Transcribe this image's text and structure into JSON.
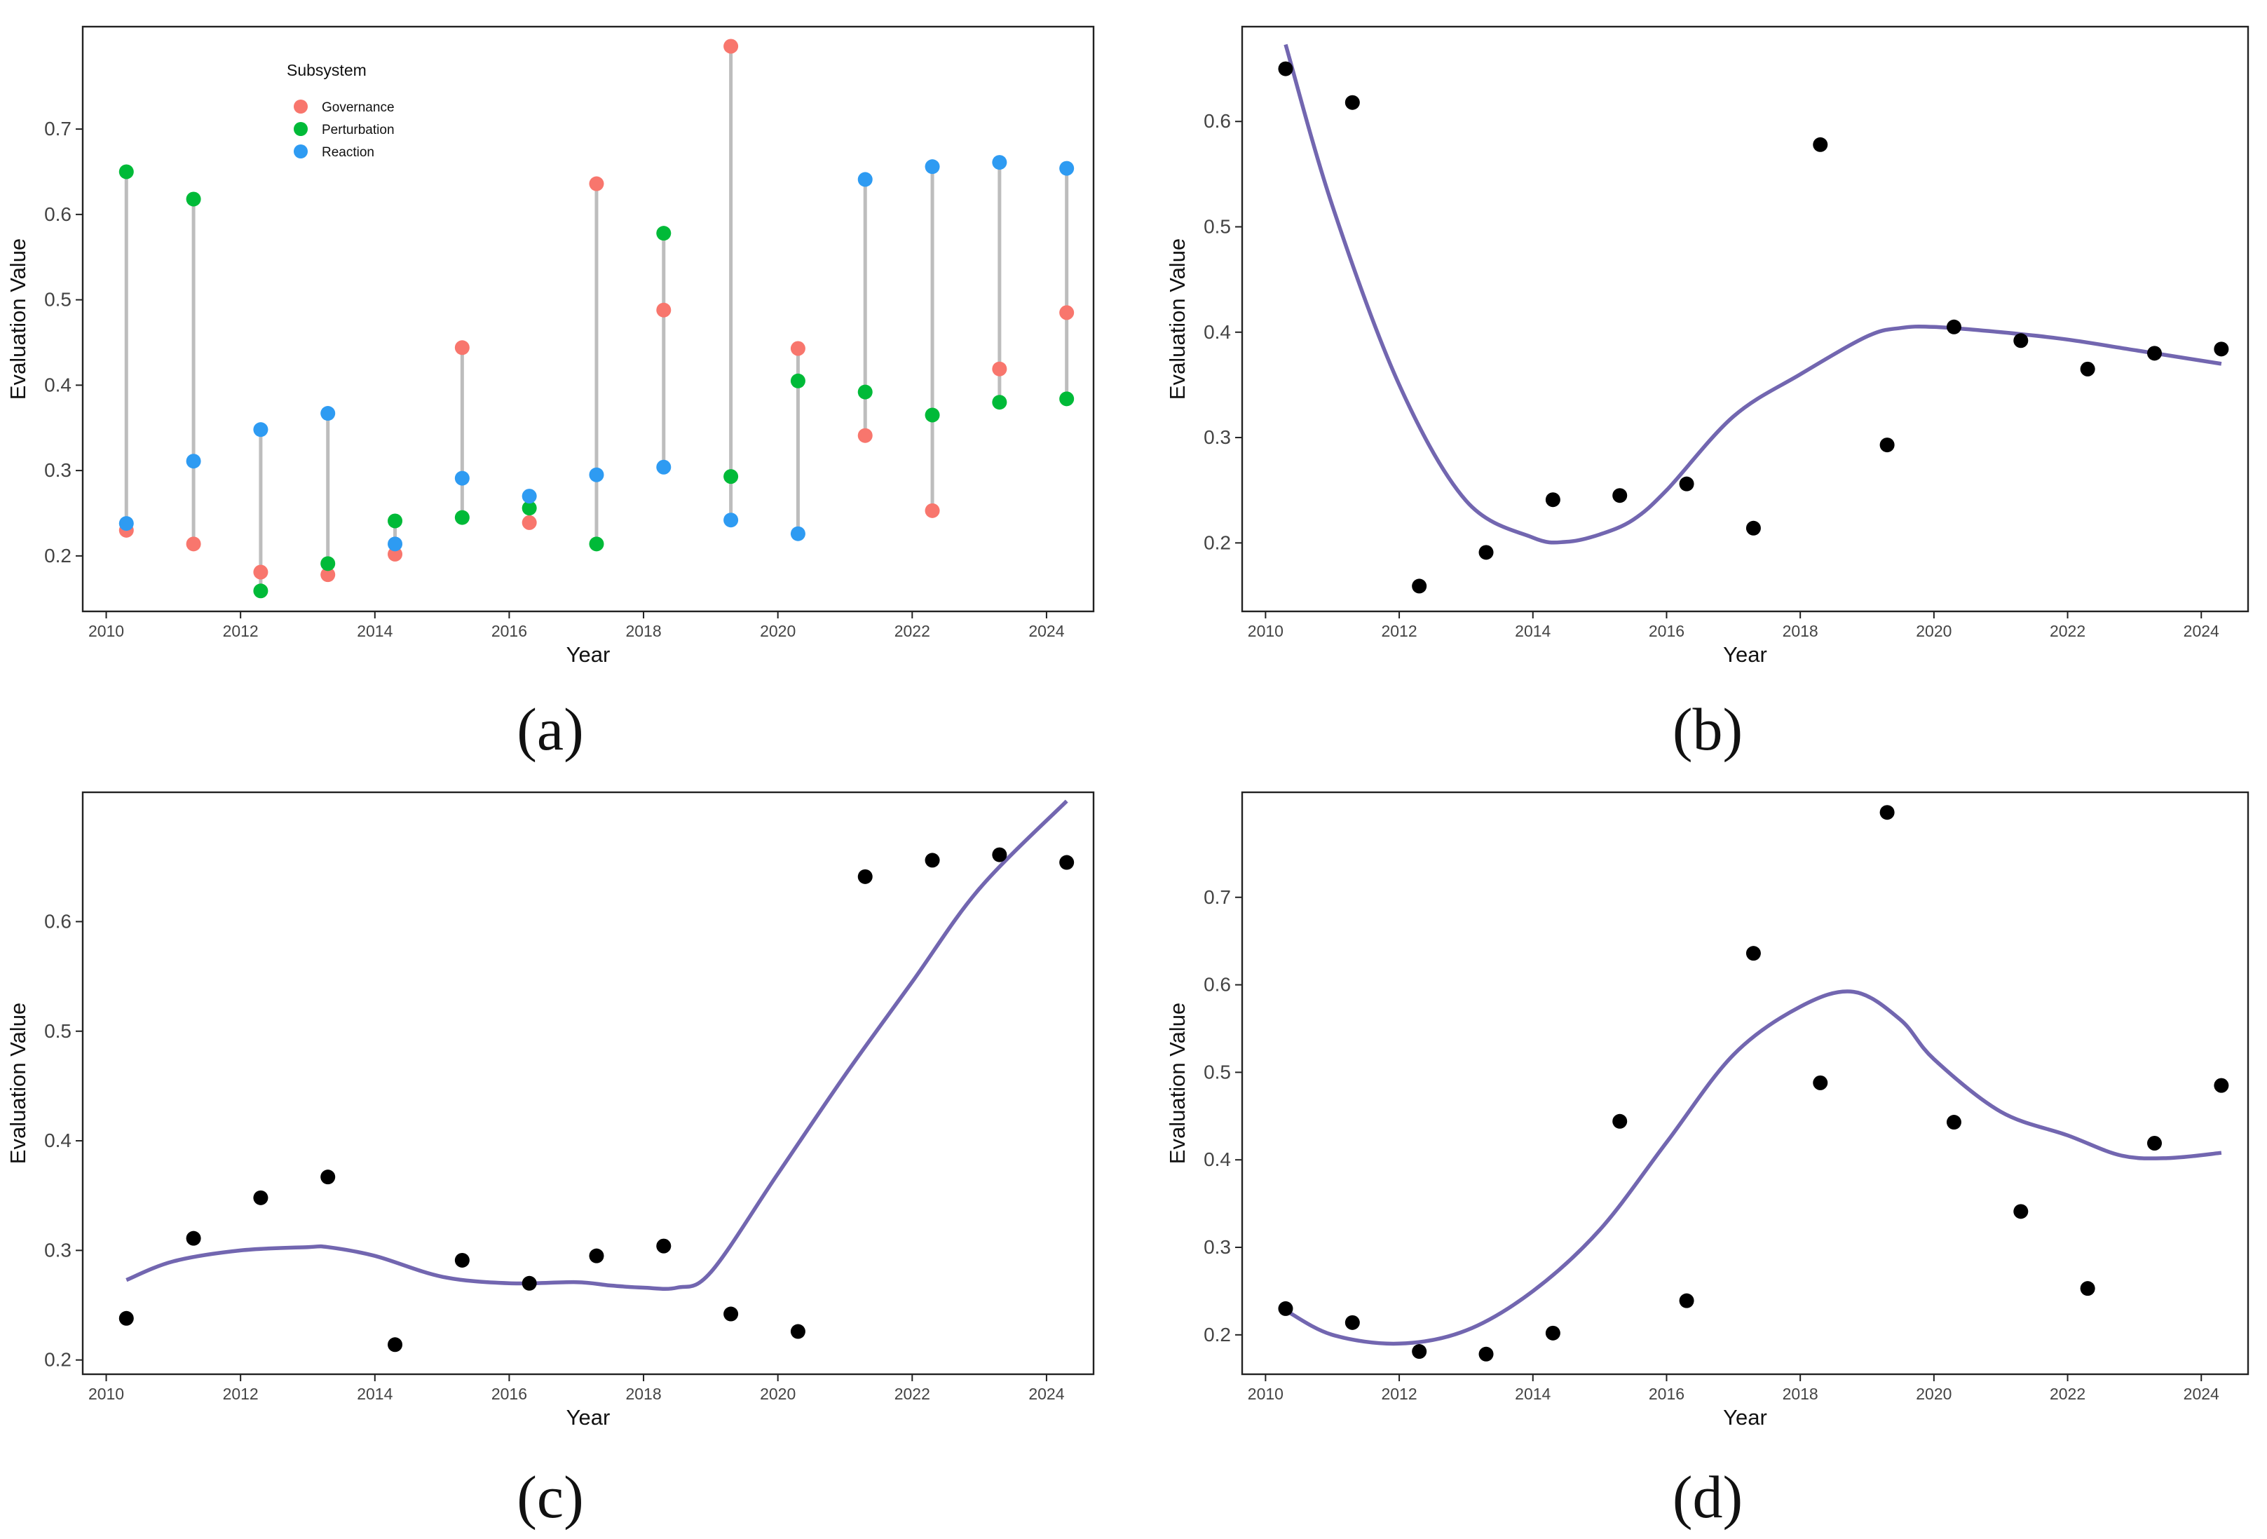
{
  "chart_data": [
    {
      "id": "a",
      "panel_label": "(a)",
      "type": "scatter",
      "style": "dumbbell",
      "xlabel": "Year",
      "ylabel": "Evaluation Value",
      "xlim": [
        2009.65,
        2024.7
      ],
      "ylim": [
        0.135,
        0.82
      ],
      "xticks": [
        2010,
        2012,
        2014,
        2016,
        2018,
        2020,
        2022,
        2024
      ],
      "yticks": [
        0.2,
        0.3,
        0.4,
        0.5,
        0.6,
        0.7
      ],
      "ytick_labels": [
        "0.2",
        "0.3",
        "0.4",
        "0.5",
        "0.6",
        "0.7"
      ],
      "x": [
        2010.3,
        2011.3,
        2012.3,
        2013.3,
        2014.3,
        2015.3,
        2016.3,
        2017.3,
        2018.3,
        2019.3,
        2020.3,
        2021.3,
        2022.3,
        2023.3,
        2024.3
      ],
      "legend": {
        "title": "Subsystem",
        "placement": "top-left"
      },
      "series": [
        {
          "name": "Governance",
          "color": "#F8766D",
          "values": [
            0.23,
            0.214,
            0.181,
            0.178,
            0.202,
            0.444,
            0.239,
            0.636,
            0.488,
            0.797,
            0.443,
            0.341,
            0.253,
            0.419,
            0.485
          ]
        },
        {
          "name": "Perturbation",
          "color": "#00BA38",
          "values": [
            0.65,
            0.618,
            0.159,
            0.191,
            0.241,
            0.245,
            0.256,
            0.214,
            0.578,
            0.293,
            0.405,
            0.392,
            0.365,
            0.38,
            0.384
          ]
        },
        {
          "name": "Reaction",
          "color": "#2E9BF2",
          "values": [
            0.238,
            0.311,
            0.348,
            0.367,
            0.214,
            0.291,
            0.27,
            0.295,
            0.304,
            0.242,
            0.226,
            0.641,
            0.656,
            0.661,
            0.654
          ]
        }
      ]
    },
    {
      "id": "b",
      "panel_label": "(b)",
      "type": "scatter",
      "style": "points-with-smooth",
      "xlabel": "Year",
      "ylabel": "Evaluation Value",
      "xlim": [
        2009.65,
        2024.7
      ],
      "ylim": [
        0.135,
        0.69
      ],
      "xticks": [
        2010,
        2012,
        2014,
        2016,
        2018,
        2020,
        2022,
        2024
      ],
      "yticks": [
        0.2,
        0.3,
        0.4,
        0.5,
        0.6
      ],
      "ytick_labels": [
        "0.2",
        "0.3",
        "0.4",
        "0.5",
        "0.6"
      ],
      "x": [
        2010.3,
        2011.3,
        2012.3,
        2013.3,
        2014.3,
        2015.3,
        2016.3,
        2017.3,
        2018.3,
        2019.3,
        2020.3,
        2021.3,
        2022.3,
        2023.3,
        2024.3
      ],
      "values": [
        0.65,
        0.618,
        0.159,
        0.191,
        0.241,
        0.245,
        0.256,
        0.214,
        0.578,
        0.293,
        0.405,
        0.392,
        0.365,
        0.38,
        0.384
      ],
      "smooth": {
        "color": "#7266B0",
        "x": [
          2010.3,
          2011,
          2012,
          2013,
          2014,
          2014.5,
          2015,
          2015.5,
          2016,
          2017,
          2018,
          2019,
          2019.5,
          2020,
          2021,
          2022,
          2023,
          2024.3
        ],
        "y": [
          0.673,
          0.52,
          0.35,
          0.24,
          0.205,
          0.201,
          0.208,
          0.222,
          0.25,
          0.32,
          0.36,
          0.396,
          0.404,
          0.405,
          0.4,
          0.393,
          0.383,
          0.37
        ]
      }
    },
    {
      "id": "c",
      "panel_label": "(c)",
      "type": "scatter",
      "style": "points-with-smooth",
      "xlabel": "Year",
      "ylabel": "Evaluation Value",
      "xlim": [
        2009.65,
        2024.7
      ],
      "ylim": [
        0.187,
        0.718
      ],
      "xticks": [
        2010,
        2012,
        2014,
        2016,
        2018,
        2020,
        2022,
        2024
      ],
      "yticks": [
        0.2,
        0.3,
        0.4,
        0.5,
        0.6
      ],
      "ytick_labels": [
        "0.2",
        "0.3",
        "0.4",
        "0.5",
        "0.6"
      ],
      "x": [
        2010.3,
        2011.3,
        2012.3,
        2013.3,
        2014.3,
        2015.3,
        2016.3,
        2017.3,
        2018.3,
        2019.3,
        2020.3,
        2021.3,
        2022.3,
        2023.3,
        2024.3
      ],
      "values": [
        0.238,
        0.311,
        0.348,
        0.367,
        0.214,
        0.291,
        0.27,
        0.295,
        0.304,
        0.242,
        0.226,
        0.641,
        0.656,
        0.661,
        0.654
      ],
      "smooth": {
        "color": "#7266B0",
        "x": [
          2010.3,
          2011,
          2012,
          2013,
          2013.3,
          2014,
          2015,
          2016,
          2017,
          2017.5,
          2018,
          2018.5,
          2019,
          2020,
          2021,
          2022,
          2023,
          2024.3
        ],
        "y": [
          0.273,
          0.29,
          0.3,
          0.303,
          0.303,
          0.295,
          0.276,
          0.27,
          0.271,
          0.268,
          0.266,
          0.266,
          0.28,
          0.37,
          0.46,
          0.545,
          0.63,
          0.71
        ]
      }
    },
    {
      "id": "d",
      "panel_label": "(d)",
      "type": "scatter",
      "style": "points-with-smooth",
      "xlabel": "Year",
      "ylabel": "Evaluation Value",
      "xlim": [
        2009.65,
        2024.7
      ],
      "ylim": [
        0.155,
        0.82
      ],
      "xticks": [
        2010,
        2012,
        2014,
        2016,
        2018,
        2020,
        2022,
        2024
      ],
      "yticks": [
        0.2,
        0.3,
        0.4,
        0.5,
        0.6,
        0.7
      ],
      "ytick_labels": [
        "0.2",
        "0.3",
        "0.4",
        "0.5",
        "0.6",
        "0.7"
      ],
      "x": [
        2010.3,
        2011.3,
        2012.3,
        2013.3,
        2014.3,
        2015.3,
        2016.3,
        2017.3,
        2018.3,
        2019.3,
        2020.3,
        2021.3,
        2022.3,
        2023.3,
        2024.3
      ],
      "values": [
        0.23,
        0.214,
        0.181,
        0.178,
        0.202,
        0.444,
        0.239,
        0.636,
        0.488,
        0.797,
        0.443,
        0.341,
        0.253,
        0.419,
        0.485
      ],
      "smooth": {
        "color": "#7266B0",
        "x": [
          2010.3,
          2011,
          2012,
          2013,
          2014,
          2015,
          2016,
          2017,
          2018,
          2018.8,
          2019.5,
          2020,
          2021,
          2022,
          2022.8,
          2023.5,
          2024.3
        ],
        "y": [
          0.228,
          0.2,
          0.19,
          0.205,
          0.25,
          0.32,
          0.42,
          0.52,
          0.575,
          0.592,
          0.56,
          0.515,
          0.455,
          0.428,
          0.405,
          0.402,
          0.408
        ]
      }
    }
  ]
}
